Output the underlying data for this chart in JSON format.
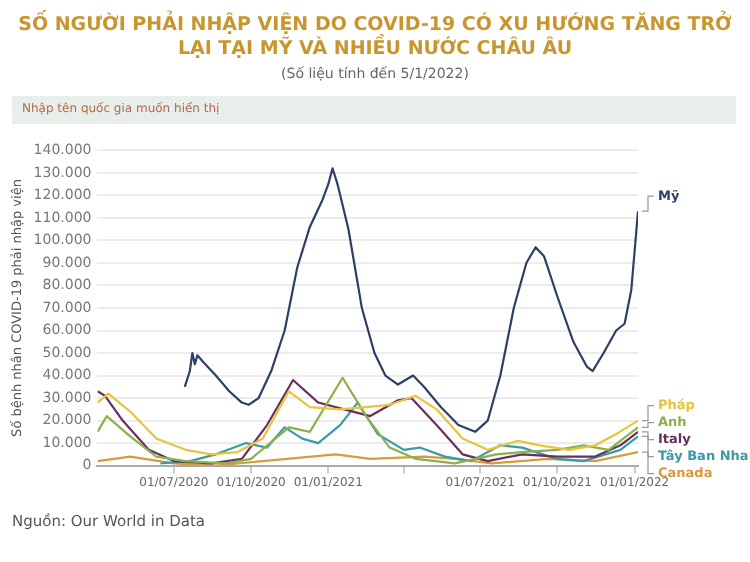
{
  "chart_data": {
    "type": "line",
    "title": "SỐ NGƯỜI PHẢI NHẬP VIỆN DO COVID-19 CÓ XU HƯỚNG TĂNG TRỞ LẠI TẠI MỸ VÀ NHIỀU NƯỚC CHÂU ÂU",
    "subtitle": "(Số liệu tính đến 5/1/2022)",
    "ylabel": "Số bệnh nhân COVID-19 phải nhập viện",
    "annotations": [
      "Nhập tên quốc gia muốn hiển thị",
      "Nguồn: Our World in Data"
    ],
    "xlim": [
      "2020-04-01",
      "2022-01-05"
    ],
    "xticks": [
      {
        "value": "2020-07-01",
        "label": "01/07/2020"
      },
      {
        "value": "2020-10-01",
        "label": "01/10/2020"
      },
      {
        "value": "2021-01-01",
        "label": "01/01/2021"
      },
      {
        "value": "2021-04-01",
        "label": null
      },
      {
        "value": "2021-07-01",
        "label": "01/07/2021"
      },
      {
        "value": "2021-10-01",
        "label": "01/10/2021"
      },
      {
        "value": "2022-01-01",
        "label": "01/01/2022"
      }
    ],
    "ylim": [
      0,
      140000
    ],
    "yticks": [
      {
        "value": 0,
        "label": "0"
      },
      {
        "value": 10000,
        "label": "10.000"
      },
      {
        "value": 20000,
        "label": "20.000"
      },
      {
        "value": 30000,
        "label": "30.000"
      },
      {
        "value": 40000,
        "label": "40.000"
      },
      {
        "value": 50000,
        "label": "50.000"
      },
      {
        "value": 60000,
        "label": "60.000"
      },
      {
        "value": 70000,
        "label": "70.000"
      },
      {
        "value": 80000,
        "label": "80.000"
      },
      {
        "value": 90000,
        "label": "90.000"
      },
      {
        "value": 100000,
        "label": "100.000"
      },
      {
        "value": 110000,
        "label": "110.000"
      },
      {
        "value": 120000,
        "label": "120.000"
      },
      {
        "value": 130000,
        "label": "130.000"
      },
      {
        "value": 140000,
        "label": "140.000"
      }
    ],
    "grid": "y",
    "legend": false,
    "marker": "none",
    "line_style": "solid",
    "series": [
      {
        "name": "Mỹ",
        "color": "#2e3f66",
        "x": [
          "2020-07-14",
          "2020-07-20",
          "2020-07-23",
          "2020-07-26",
          "2020-07-29",
          "2020-08-05",
          "2020-08-20",
          "2020-09-05",
          "2020-09-20",
          "2020-09-28",
          "2020-10-10",
          "2020-10-25",
          "2020-11-10",
          "2020-11-25",
          "2020-12-10",
          "2020-12-25",
          "2021-01-01",
          "2021-01-06",
          "2021-01-12",
          "2021-01-25",
          "2021-02-10",
          "2021-02-25",
          "2021-03-10",
          "2021-03-25",
          "2021-04-12",
          "2021-04-25",
          "2021-05-15",
          "2021-06-05",
          "2021-06-25",
          "2021-07-10",
          "2021-07-25",
          "2021-08-10",
          "2021-08-25",
          "2021-09-05",
          "2021-09-15",
          "2021-10-01",
          "2021-10-20",
          "2021-11-05",
          "2021-11-12",
          "2021-11-25",
          "2021-12-10",
          "2021-12-20",
          "2021-12-28",
          "2022-01-05"
        ],
        "values": [
          35000,
          42000,
          50000,
          45000,
          49000,
          46000,
          40000,
          33000,
          28000,
          27000,
          30000,
          42000,
          60000,
          88000,
          106000,
          118000,
          125000,
          132000,
          125000,
          105000,
          70000,
          50000,
          40000,
          36000,
          40000,
          35000,
          26000,
          18000,
          15000,
          20000,
          40000,
          70000,
          90000,
          97000,
          93000,
          75000,
          55000,
          44000,
          42000,
          50000,
          60000,
          63000,
          78000,
          113000
        ]
      },
      {
        "name": "Pháp",
        "color": "#e6c53c",
        "x": [
          "2020-04-01",
          "2020-04-14",
          "2020-05-10",
          "2020-06-10",
          "2020-07-15",
          "2020-08-15",
          "2020-09-15",
          "2020-10-15",
          "2020-11-15",
          "2020-12-10",
          "2021-01-15",
          "2021-02-15",
          "2021-03-15",
          "2021-04-15",
          "2021-05-10",
          "2021-06-10",
          "2021-07-10",
          "2021-08-15",
          "2021-09-10",
          "2021-10-15",
          "2021-11-15",
          "2021-12-10",
          "2022-01-05"
        ],
        "values": [
          28000,
          32000,
          24000,
          12000,
          7000,
          5000,
          6000,
          12000,
          33000,
          26000,
          25000,
          26000,
          27000,
          31000,
          25000,
          12000,
          7000,
          11000,
          9000,
          7000,
          9000,
          14000,
          20000
        ]
      },
      {
        "name": "Anh",
        "color": "#8cb04c",
        "x": [
          "2020-04-01",
          "2020-04-12",
          "2020-05-10",
          "2020-06-10",
          "2020-07-15",
          "2020-09-01",
          "2020-10-01",
          "2020-11-15",
          "2020-12-10",
          "2021-01-18",
          "2021-02-15",
          "2021-03-15",
          "2021-04-15",
          "2021-06-01",
          "2021-07-20",
          "2021-08-20",
          "2021-10-01",
          "2021-11-01",
          "2021-12-01",
          "2022-01-05"
        ],
        "values": [
          15000,
          22000,
          13000,
          4000,
          2000,
          1000,
          3000,
          17000,
          15000,
          39000,
          22000,
          8000,
          3000,
          1000,
          5000,
          6000,
          7000,
          9000,
          7000,
          17000
        ]
      },
      {
        "name": "Italy",
        "color": "#6b2f5e",
        "x": [
          "2020-04-01",
          "2020-04-10",
          "2020-05-01",
          "2020-06-01",
          "2020-07-01",
          "2020-08-15",
          "2020-09-20",
          "2020-10-20",
          "2020-11-20",
          "2020-12-20",
          "2021-01-20",
          "2021-02-20",
          "2021-03-25",
          "2021-04-10",
          "2021-05-10",
          "2021-06-10",
          "2021-07-10",
          "2021-08-20",
          "2021-10-01",
          "2021-11-15",
          "2021-12-15",
          "2022-01-05"
        ],
        "values": [
          33000,
          31000,
          20000,
          7000,
          2000,
          1000,
          3000,
          18000,
          38000,
          28000,
          25000,
          22000,
          29000,
          30000,
          18000,
          5000,
          2000,
          5000,
          4000,
          4000,
          9000,
          15000
        ]
      },
      {
        "name": "Tây Ban Nha",
        "color": "#3a9aa6",
        "x": [
          "2020-06-15",
          "2020-07-20",
          "2020-08-20",
          "2020-09-25",
          "2020-10-20",
          "2020-11-10",
          "2020-12-01",
          "2020-12-20",
          "2021-01-15",
          "2021-02-05",
          "2021-03-01",
          "2021-04-01",
          "2021-04-20",
          "2021-05-20",
          "2021-06-20",
          "2021-07-25",
          "2021-08-20",
          "2021-09-30",
          "2021-11-01",
          "2021-12-15",
          "2022-01-05"
        ],
        "values": [
          1000,
          2000,
          5000,
          10000,
          8000,
          17000,
          12000,
          10000,
          18000,
          28000,
          14000,
          7000,
          8000,
          4000,
          2000,
          9000,
          8000,
          3000,
          2000,
          7000,
          13000
        ]
      },
      {
        "name": "Canada",
        "color": "#d99a3c",
        "x": [
          "2020-04-01",
          "2020-05-10",
          "2020-07-01",
          "2020-08-20",
          "2020-10-15",
          "2021-01-10",
          "2021-02-20",
          "2021-04-25",
          "2021-06-01",
          "2021-07-15",
          "2021-09-20",
          "2021-11-15",
          "2022-01-05"
        ],
        "values": [
          2000,
          4000,
          1000,
          0,
          2000,
          5000,
          3000,
          4000,
          3000,
          1000,
          3000,
          2000,
          6000
        ]
      }
    ]
  }
}
